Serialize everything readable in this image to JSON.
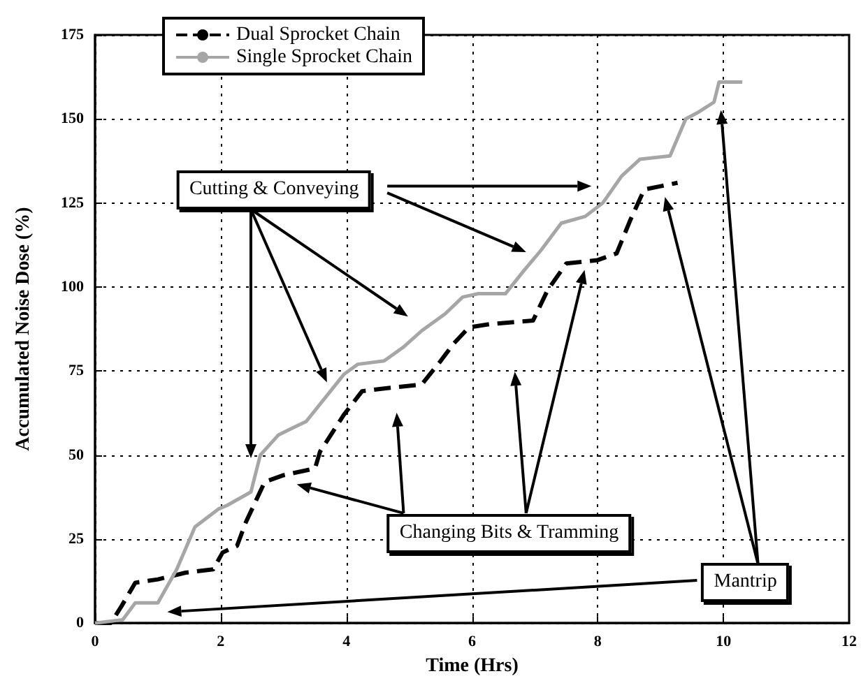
{
  "chart_data": {
    "type": "line",
    "xlabel": "Time (Hrs)",
    "ylabel": "Accumulated Noise Dose (%)",
    "xlim": [
      0,
      12
    ],
    "xticks": [
      0,
      2,
      4,
      6,
      8,
      10,
      12
    ],
    "ylim": [
      0,
      175
    ],
    "yticks": [
      0,
      25,
      50,
      75,
      100,
      125,
      150,
      175
    ],
    "grid": true,
    "legend": "top left",
    "marker": "none",
    "annotations": [
      "Cutting & Conveying",
      "Changing Bits & Tramming",
      "Mantrip"
    ],
    "series": [
      {
        "name": "Dual Sprocket Chain",
        "color": "#000000",
        "line_style": "dashed",
        "x": [
          0,
          0.25,
          0.42,
          0.64,
          1.0,
          1.44,
          1.88,
          2.03,
          2.26,
          2.4,
          2.7,
          3.0,
          3.5,
          3.58,
          3.96,
          4.25,
          4.7,
          5.2,
          5.5,
          5.7,
          5.95,
          6.3,
          6.97,
          7.2,
          7.5,
          8.0,
          8.3,
          8.52,
          8.74,
          9.0,
          9.27
        ],
        "values": [
          0,
          0,
          5,
          12,
          13,
          15,
          16,
          21,
          23,
          30,
          42,
          44,
          46,
          51,
          62,
          69,
          70,
          71,
          78,
          83,
          88,
          89,
          90,
          99,
          107,
          108,
          110,
          120,
          129,
          130,
          131
        ]
      },
      {
        "name": "Single Sprocket Chain",
        "color": "#a6a6a6",
        "line_style": "solid",
        "x": [
          0,
          0.44,
          0.64,
          1.0,
          1.3,
          1.59,
          1.97,
          2.1,
          2.48,
          2.63,
          2.92,
          3.14,
          3.36,
          3.96,
          4.18,
          4.6,
          4.9,
          5.2,
          5.57,
          5.85,
          6.1,
          6.53,
          6.83,
          7.1,
          7.42,
          7.8,
          8.08,
          8.38,
          8.67,
          9.15,
          9.4,
          9.6,
          9.85,
          9.93,
          10.3
        ],
        "values": [
          0,
          1,
          6,
          6,
          16,
          28.6,
          34,
          35,
          39,
          50,
          56,
          58,
          60,
          74,
          77,
          78,
          82,
          87,
          92,
          97,
          98,
          98,
          105,
          111,
          119,
          121,
          125,
          133,
          138,
          139,
          150,
          152,
          155,
          161,
          161
        ]
      }
    ]
  }
}
